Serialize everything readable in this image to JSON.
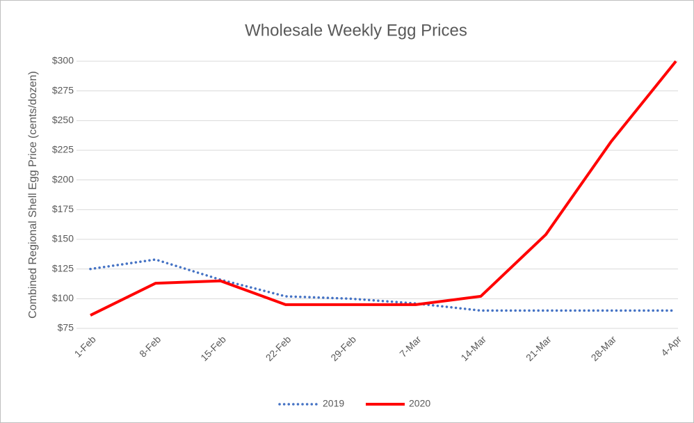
{
  "chart_data": {
    "type": "line",
    "title": "Wholesale Weekly Egg Prices",
    "y_label": "Combined Regional Shell Egg Price (cents/dozen)",
    "categories": [
      "1-Feb",
      "8-Feb",
      "15-Feb",
      "22-Feb",
      "29-Feb",
      "7-Mar",
      "14-Mar",
      "21-Mar",
      "28-Mar",
      "4-Apr"
    ],
    "series": [
      {
        "name": "2019",
        "color": "#4472c4",
        "dash": "dotted",
        "values": [
          125,
          133,
          116,
          102,
          100,
          96,
          90,
          90,
          90,
          90
        ]
      },
      {
        "name": "2020",
        "color": "#ff0000",
        "dash": "solid",
        "values": [
          86,
          113,
          115,
          95,
          95,
          95,
          102,
          154,
          232,
          300
        ]
      }
    ],
    "ylim": [
      75,
      300
    ],
    "yticks": [
      {
        "value": 75,
        "label": "$75"
      },
      {
        "value": 100,
        "label": "$100"
      },
      {
        "value": 125,
        "label": "$125"
      },
      {
        "value": 150,
        "label": "$150"
      },
      {
        "value": 175,
        "label": "$175"
      },
      {
        "value": 200,
        "label": "$200"
      },
      {
        "value": 225,
        "label": "$225"
      },
      {
        "value": 250,
        "label": "$250"
      },
      {
        "value": 275,
        "label": "$275"
      },
      {
        "value": 300,
        "label": "$300"
      }
    ],
    "grid": true,
    "legend": "bottom"
  }
}
